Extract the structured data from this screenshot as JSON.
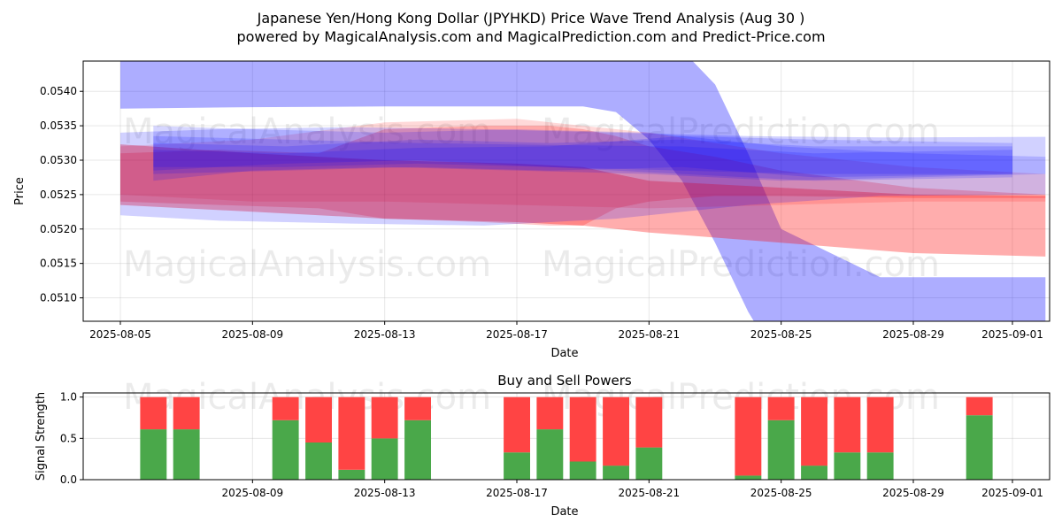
{
  "title_line1": "Japanese Yen/Hong Kong Dollar (JPYHKD) Price Wave Trend Analysis (Aug 30 )",
  "title_line2": "powered by MagicalAnalysis.com and MagicalPrediction.com and Predict-Price.com",
  "watermarks": [
    "MagicalAnalysis.com",
    "MagicalPrediction.com"
  ],
  "colors": {
    "blue": "#0000ff",
    "red": "#ff0000",
    "green": "#008000",
    "sell": "#ff4444",
    "buy": "#4aa84a"
  },
  "chart_data": [
    {
      "type": "area",
      "title": "",
      "xlabel": "Date",
      "ylabel": "Price",
      "xlim": [
        "2025-08-04T09:00",
        "2025-09-02T15:00"
      ],
      "ylim": [
        0.05066,
        0.05444
      ],
      "grid": true,
      "x_ticks": [
        "2025-08-05",
        "2025-08-09",
        "2025-08-13",
        "2025-08-17",
        "2025-08-21",
        "2025-08-25",
        "2025-08-29",
        "2025-09-01"
      ],
      "y_ticks": [
        "0.0510",
        "0.0515",
        "0.0520",
        "0.0525",
        "0.0530",
        "0.0535",
        "0.0540"
      ],
      "bands": [
        {
          "color": "blue",
          "opacity": 0.32,
          "x": [
            "2025-08-05",
            "2025-08-09",
            "2025-08-13",
            "2025-08-17",
            "2025-08-19",
            "2025-08-20",
            "2025-08-21",
            "2025-08-22",
            "2025-08-23",
            "2025-08-24",
            "2025-08-25",
            "2025-08-28",
            "2025-09-02"
          ],
          "upper": [
            0.0546,
            0.0546,
            0.0546,
            0.0546,
            0.0546,
            0.0546,
            0.0546,
            0.0546,
            0.0541,
            0.0531,
            0.052,
            0.0513,
            0.0513
          ],
          "lower": [
            0.05375,
            0.05377,
            0.05378,
            0.05378,
            0.05378,
            0.0537,
            0.0533,
            0.0527,
            0.0518,
            0.0508,
            0.05,
            0.05,
            0.05
          ]
        },
        {
          "color": "red",
          "opacity": 0.32,
          "x": [
            "2025-08-05",
            "2025-08-09",
            "2025-08-13",
            "2025-08-17",
            "2025-08-19",
            "2025-08-20",
            "2025-08-21",
            "2025-08-25",
            "2025-08-29",
            "2025-09-02"
          ],
          "upper": [
            0.05323,
            0.0531,
            0.053,
            0.05295,
            0.0529,
            0.0528,
            0.0527,
            0.0526,
            0.0525,
            0.05248
          ],
          "lower": [
            0.05235,
            0.05225,
            0.05215,
            0.0521,
            0.05205,
            0.052,
            0.05195,
            0.0518,
            0.05165,
            0.0516
          ]
        },
        {
          "color": "red",
          "opacity": 0.22,
          "x": [
            "2025-08-05",
            "2025-08-08",
            "2025-08-11",
            "2025-08-13",
            "2025-08-16",
            "2025-08-18",
            "2025-08-19",
            "2025-08-20",
            "2025-08-21",
            "2025-08-23",
            "2025-08-25",
            "2025-08-29",
            "2025-09-02"
          ],
          "upper": [
            0.0531,
            0.05315,
            0.0531,
            0.05345,
            0.0535,
            0.0535,
            0.05345,
            0.05335,
            0.0532,
            0.05305,
            0.05285,
            0.0526,
            0.0525
          ],
          "lower": [
            0.0524,
            0.05235,
            0.0523,
            0.05215,
            0.0521,
            0.05205,
            0.05205,
            0.0523,
            0.0524,
            0.05248,
            0.05248,
            0.05245,
            0.05245
          ]
        },
        {
          "color": "red",
          "opacity": 0.15,
          "x": [
            "2025-08-05",
            "2025-08-09",
            "2025-08-13",
            "2025-08-17",
            "2025-08-21",
            "2025-08-25",
            "2025-08-29",
            "2025-09-02"
          ],
          "upper": [
            0.0532,
            0.0533,
            0.05355,
            0.0536,
            0.0534,
            0.0531,
            0.0529,
            0.0528
          ],
          "lower": [
            0.0525,
            0.0524,
            0.0524,
            0.05235,
            0.0523,
            0.05235,
            0.0524,
            0.0524
          ]
        },
        {
          "color": "blue",
          "opacity": 0.18,
          "x": [
            "2025-08-05",
            "2025-08-08",
            "2025-08-12",
            "2025-08-16",
            "2025-08-20",
            "2025-08-24",
            "2025-08-28",
            "2025-09-02"
          ],
          "upper": [
            0.0534,
            0.05345,
            0.05348,
            0.05345,
            0.0534,
            0.05335,
            0.05333,
            0.05334
          ],
          "lower": [
            0.0522,
            0.05212,
            0.05208,
            0.05205,
            0.05215,
            0.05235,
            0.05248,
            0.0525
          ]
        },
        {
          "color": "blue",
          "opacity": 0.16,
          "x": [
            "2025-08-06",
            "2025-08-09",
            "2025-08-13",
            "2025-08-17",
            "2025-08-21",
            "2025-08-25",
            "2025-08-29",
            "2025-09-02"
          ],
          "upper": [
            0.0535,
            0.05345,
            0.0534,
            0.05345,
            0.0534,
            0.0532,
            0.0531,
            0.05305
          ],
          "lower": [
            0.0527,
            0.05285,
            0.0529,
            0.05285,
            0.0528,
            0.0527,
            0.05275,
            0.0528
          ]
        },
        {
          "color": "blue",
          "opacity": 0.16,
          "x": [
            "2025-08-06",
            "2025-08-10",
            "2025-08-14",
            "2025-08-18",
            "2025-08-22",
            "2025-08-26",
            "2025-09-01"
          ],
          "upper": [
            0.05335,
            0.0533,
            0.05325,
            0.05322,
            0.0532,
            0.0531,
            0.05315
          ],
          "lower": [
            0.05285,
            0.05295,
            0.053,
            0.0529,
            0.0528,
            0.0527,
            0.05275
          ]
        },
        {
          "color": "blue",
          "opacity": 0.16,
          "x": [
            "2025-08-06",
            "2025-08-10",
            "2025-08-14",
            "2025-08-18",
            "2025-08-22",
            "2025-08-26",
            "2025-09-01"
          ],
          "upper": [
            0.05325,
            0.0532,
            0.0533,
            0.05325,
            0.0533,
            0.0532,
            0.0532
          ],
          "lower": [
            0.0529,
            0.0529,
            0.05295,
            0.0529,
            0.05285,
            0.0528,
            0.0528
          ]
        },
        {
          "color": "blue",
          "opacity": 0.16,
          "x": [
            "2025-08-06",
            "2025-08-10",
            "2025-08-14",
            "2025-08-18",
            "2025-08-22",
            "2025-08-26",
            "2025-09-01"
          ],
          "upper": [
            0.05315,
            0.0531,
            0.05318,
            0.0532,
            0.05335,
            0.0533,
            0.05325
          ],
          "lower": [
            0.0528,
            0.05285,
            0.0529,
            0.05285,
            0.0529,
            0.05275,
            0.0528
          ]
        }
      ]
    },
    {
      "type": "bar",
      "title": "Buy and Sell Powers",
      "xlabel": "Date",
      "ylabel": "Signal Strength",
      "ylim": [
        0,
        1.05
      ],
      "y_ticks": [
        "0.0",
        "0.5",
        "1.0"
      ],
      "x_ticks": [
        "2025-08-09",
        "2025-08-13",
        "2025-08-17",
        "2025-08-21",
        "2025-08-25",
        "2025-08-29",
        "2025-09-01"
      ],
      "series": [
        {
          "name": "Buy",
          "color": "buy"
        },
        {
          "name": "Sell",
          "color": "sell"
        }
      ],
      "categories": [
        "2025-08-06",
        "2025-08-07",
        "2025-08-10",
        "2025-08-11",
        "2025-08-12",
        "2025-08-13",
        "2025-08-14",
        "2025-08-17",
        "2025-08-18",
        "2025-08-19",
        "2025-08-20",
        "2025-08-21",
        "2025-08-24",
        "2025-08-25",
        "2025-08-26",
        "2025-08-27",
        "2025-08-28",
        "2025-08-31"
      ],
      "buy": [
        0.61,
        0.61,
        0.72,
        0.45,
        0.12,
        0.5,
        0.72,
        0.33,
        0.61,
        0.22,
        0.17,
        0.39,
        0.05,
        0.72,
        0.17,
        0.33,
        0.33,
        0.78
      ],
      "sell": [
        0.39,
        0.39,
        0.28,
        0.55,
        0.88,
        0.5,
        0.28,
        0.67,
        0.39,
        0.78,
        0.83,
        0.61,
        0.95,
        0.28,
        0.83,
        0.67,
        0.67,
        0.22
      ]
    }
  ]
}
